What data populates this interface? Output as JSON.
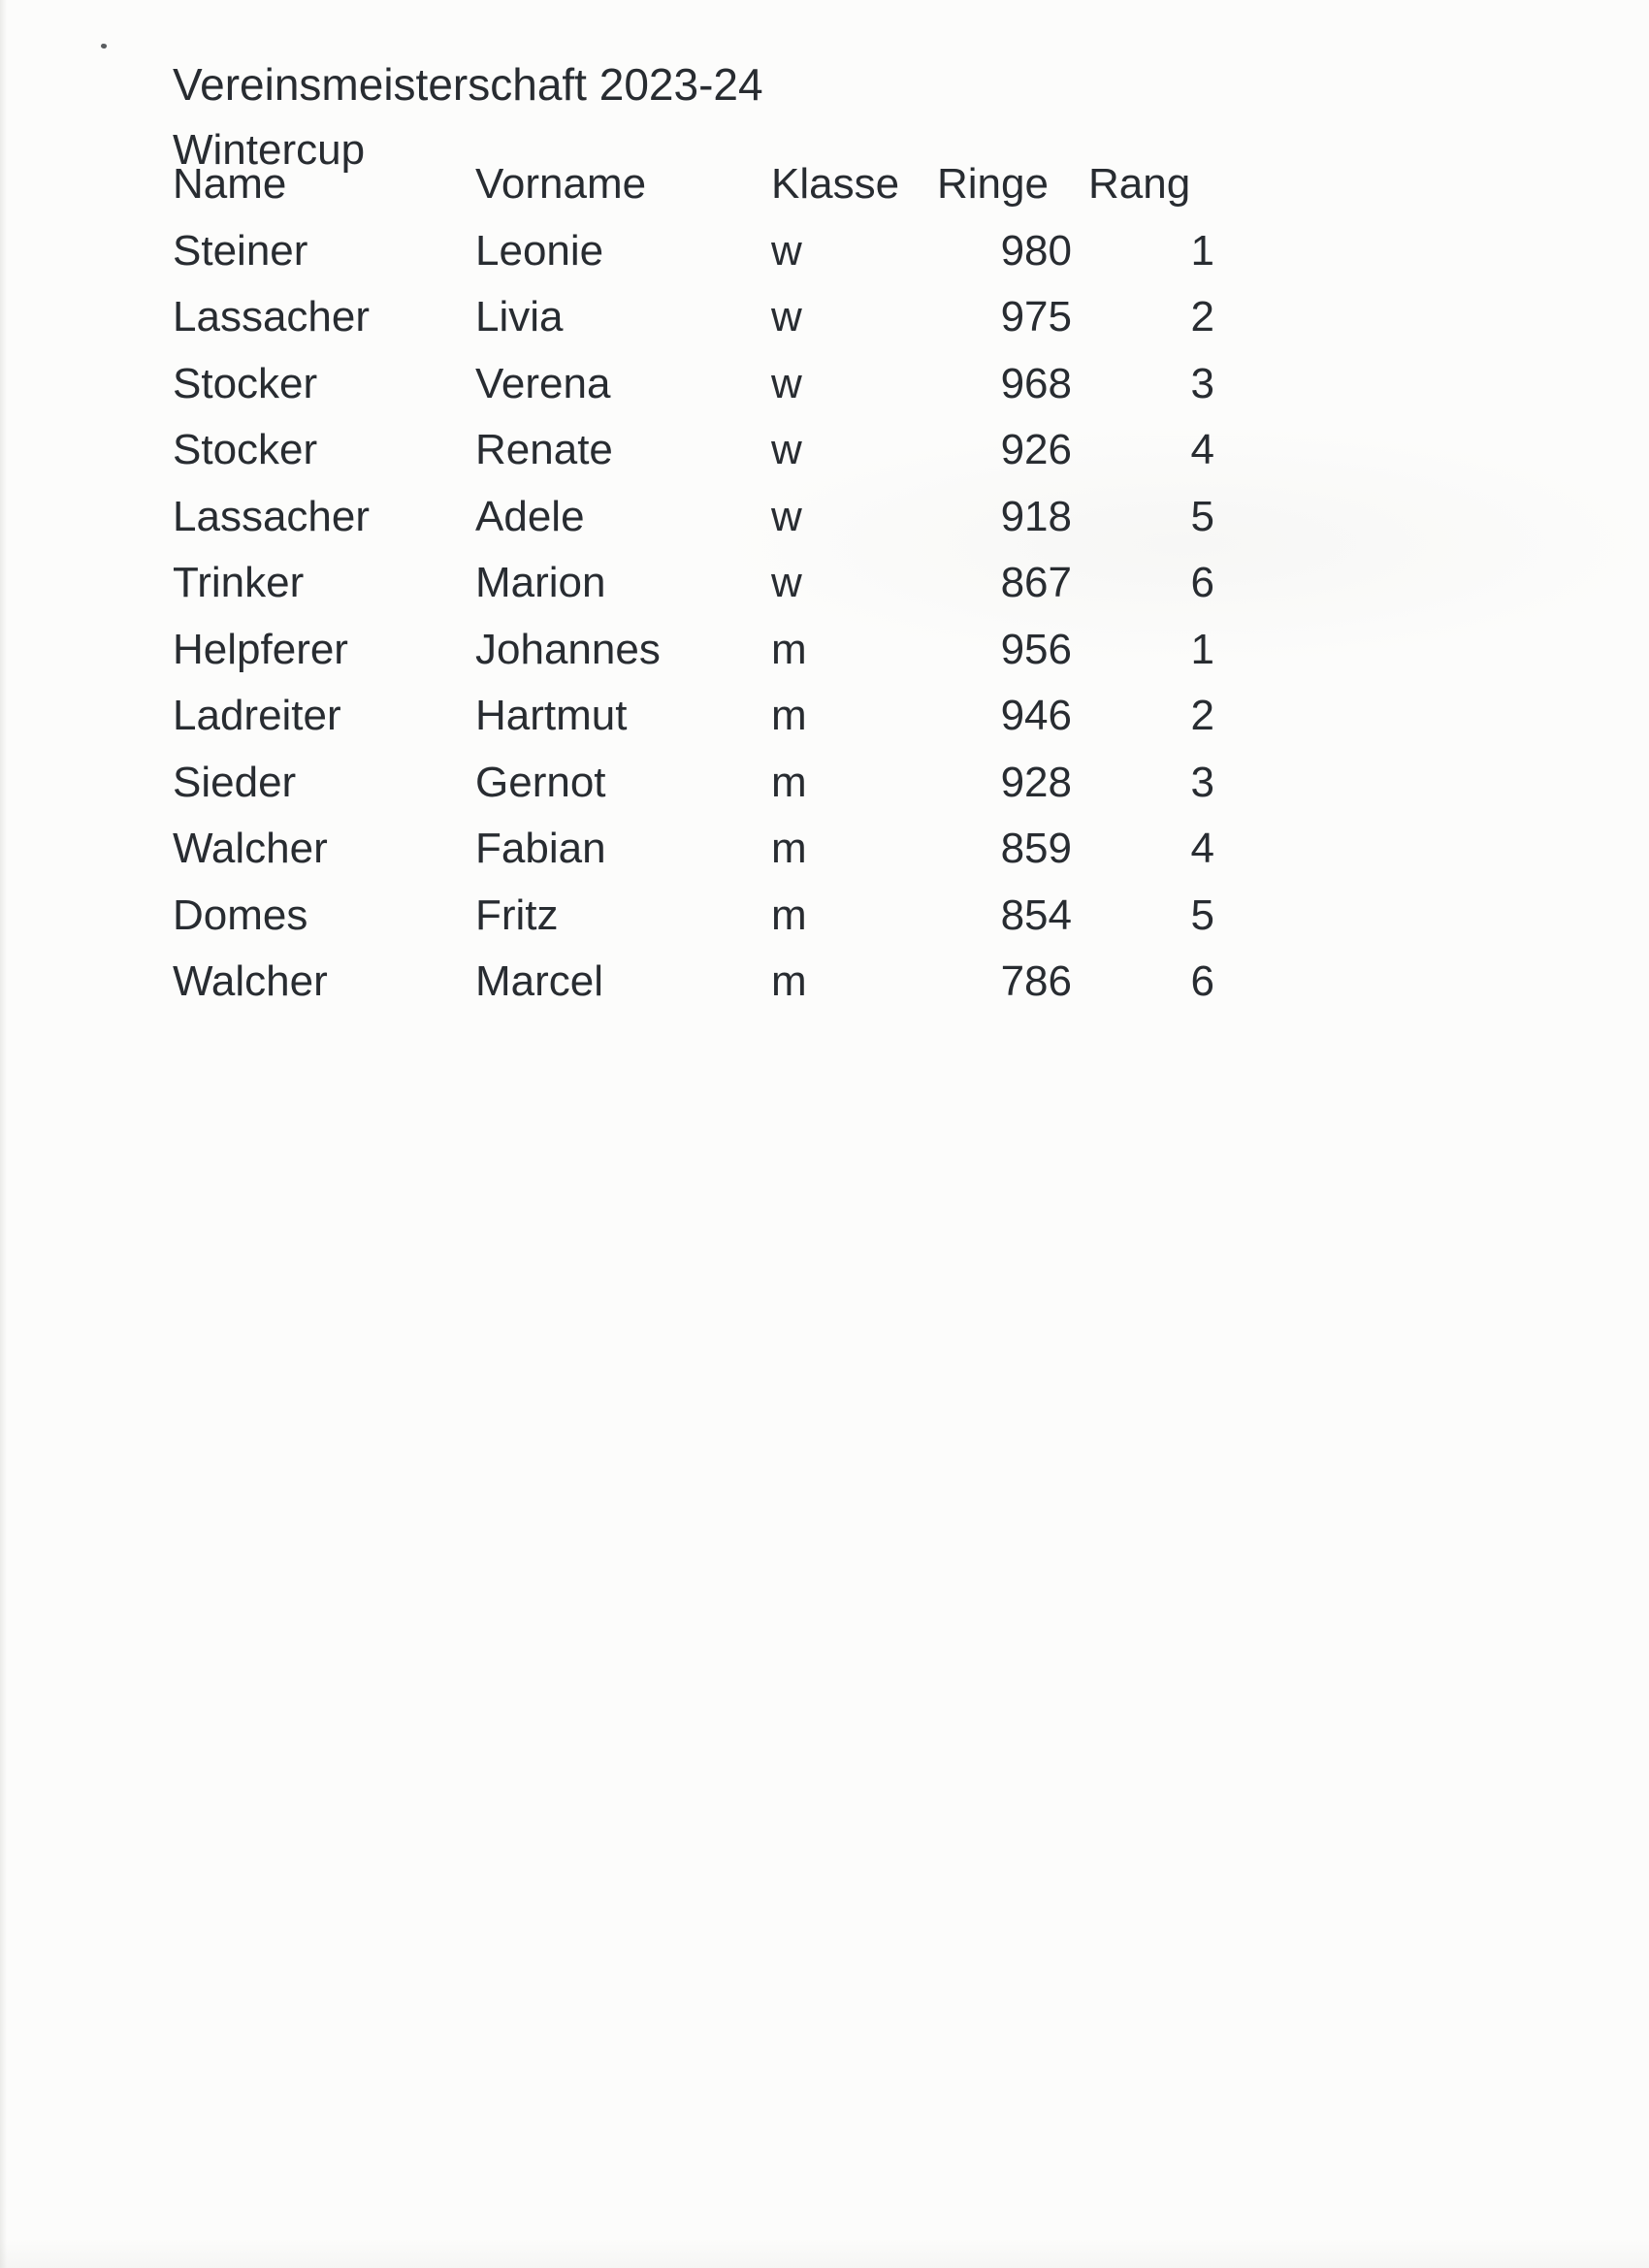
{
  "document": {
    "title": "Vereinsmeisterschaft 2023-24",
    "subtitle": "Wintercup",
    "table": {
      "columns": [
        "Name",
        "Vorname",
        "Klasse",
        "Ringe",
        "Rang"
      ],
      "rows": [
        [
          "Steiner",
          "Leonie",
          "w",
          "980",
          "1"
        ],
        [
          "Lassacher",
          "Livia",
          "w",
          "975",
          "2"
        ],
        [
          "Stocker",
          "Verena",
          "w",
          "968",
          "3"
        ],
        [
          "Stocker",
          "Renate",
          "w",
          "926",
          "4"
        ],
        [
          "Lassacher",
          "Adele",
          "w",
          "918",
          "5"
        ],
        [
          "Trinker",
          "Marion",
          "w",
          "867",
          "6"
        ],
        [
          "Helpferer",
          "Johannes",
          "m",
          "956",
          "1"
        ],
        [
          "Ladreiter",
          "Hartmut",
          "m",
          "946",
          "2"
        ],
        [
          "Sieder",
          "Gernot",
          "m",
          "928",
          "3"
        ],
        [
          "Walcher",
          "Fabian",
          "m",
          "859",
          "4"
        ],
        [
          "Domes",
          "Fritz",
          "m",
          "854",
          "5"
        ],
        [
          "Walcher",
          "Marcel",
          "m",
          "786",
          "6"
        ]
      ]
    }
  },
  "colors": {
    "ink": "#282c31",
    "paper": "#fcfcfb"
  }
}
